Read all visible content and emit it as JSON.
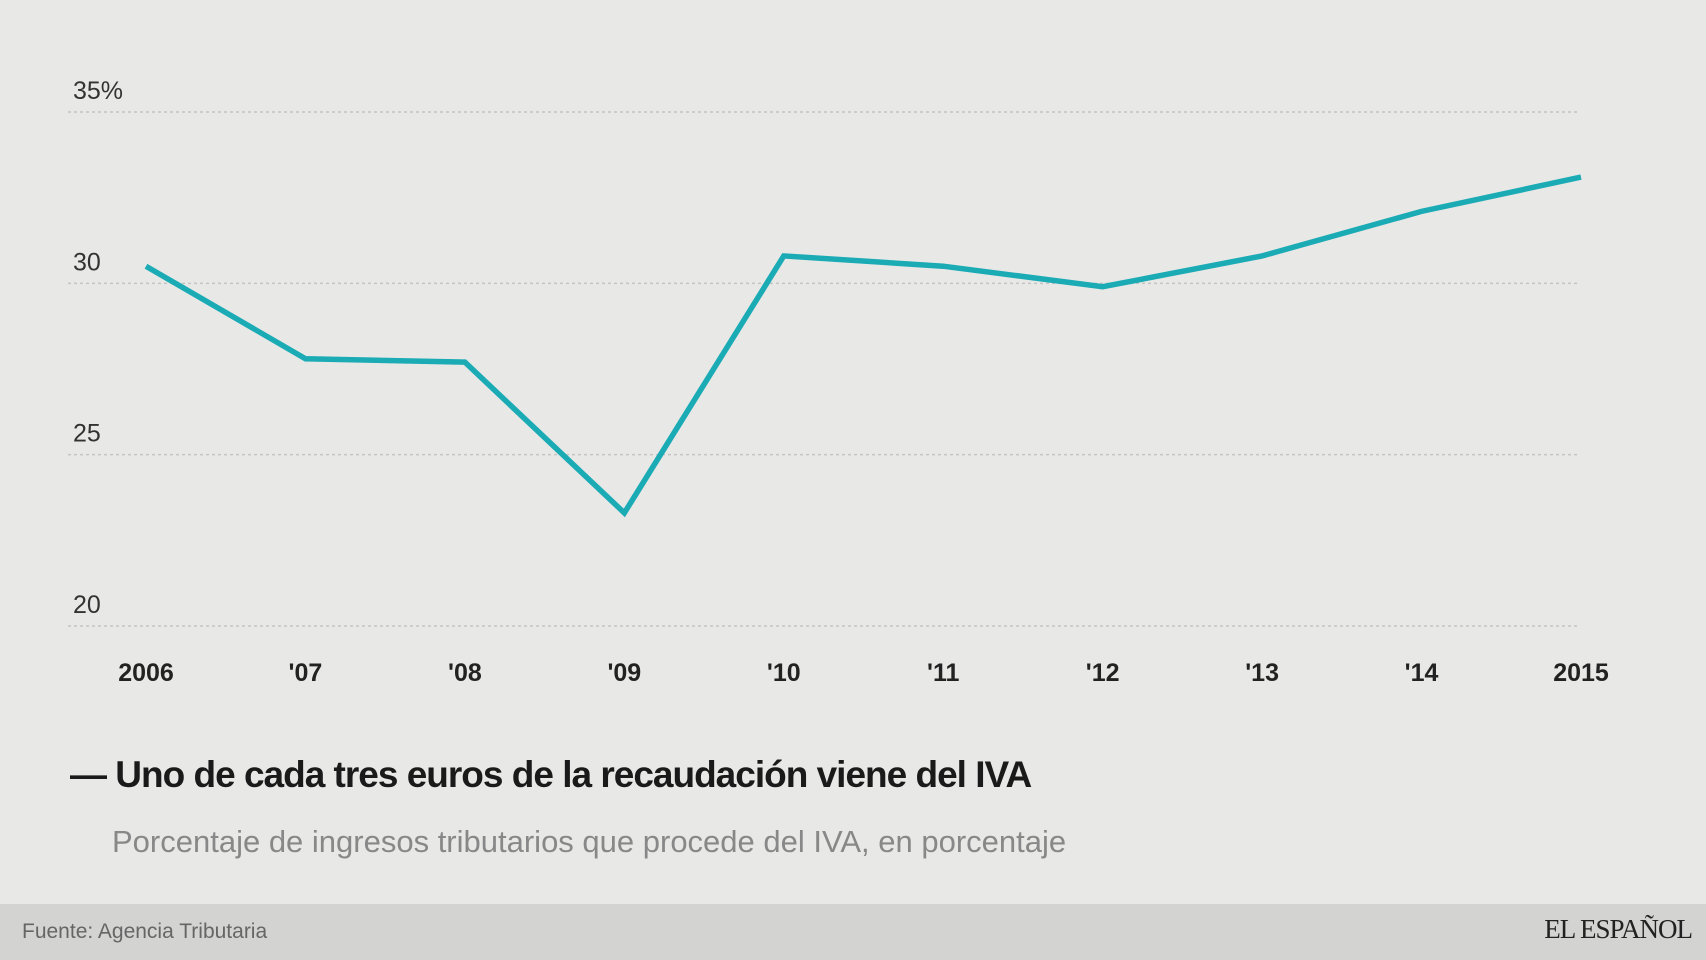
{
  "chart_data": {
    "type": "line",
    "title": "Uno de cada tres euros de la recaudación viene del IVA",
    "subtitle": "Porcentaje de ingresos tributarios que procede del IVA, en porcentaje",
    "categories": [
      "2006",
      "'07",
      "'08",
      "'09",
      "'10",
      "'11",
      "'12",
      "'13",
      "'14",
      "2015"
    ],
    "series": [
      {
        "values": [
          30.5,
          27.8,
          27.7,
          23.3,
          30.8,
          30.5,
          29.9,
          30.8,
          32.1,
          33.1
        ],
        "color": "#1aabb5"
      }
    ],
    "yticks": [
      "20",
      "25",
      "30",
      "35%"
    ],
    "ytick_values": [
      20,
      25,
      30,
      35
    ],
    "ylim": [
      20,
      35
    ],
    "grid": true,
    "legend": "none"
  },
  "title_dash": "—",
  "footer": {
    "source": "Fuente: Agencia Tributaria",
    "logo": "EL ESPAÑOL"
  }
}
